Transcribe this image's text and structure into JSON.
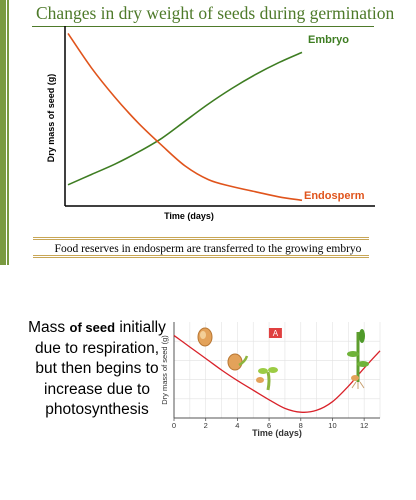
{
  "slide": {
    "title": "Changes in dry weight of seeds during germination",
    "caption": "Food reserves in endosperm are transferred to the growing embryo",
    "mass_note": {
      "first": "Mass",
      "bold": "of seed",
      "rest": "initially due to respiration, but then begins to increase due to photosynthesis"
    }
  },
  "colors": {
    "title": "#4e7a2a",
    "rule": "#c8a656",
    "sidebar": "#7a9a40",
    "embryo": "#3e7d22",
    "endosperm": "#e0541c",
    "curve2": "#d9222a",
    "marker": "#e04040",
    "axis": "#000000"
  },
  "chart_data": [
    {
      "type": "line",
      "xlabel": "Time (days)",
      "ylabel": "Dry mass of seed (g)",
      "x_ticks_labeled": false,
      "y_ticks_labeled": false,
      "xlim": [
        0,
        10
      ],
      "ylim": [
        0,
        10
      ],
      "series": [
        {
          "name": "Embryo",
          "color": "#3e7d22",
          "x": [
            0,
            1,
            2,
            3,
            4,
            5,
            6,
            7,
            8,
            9,
            10
          ],
          "y": [
            1.0,
            1.6,
            2.2,
            2.9,
            3.7,
            4.7,
            5.7,
            6.6,
            7.4,
            8.1,
            8.7
          ]
        },
        {
          "name": "Endosperm",
          "color": "#e0541c",
          "x": [
            0,
            1,
            2,
            3,
            4,
            5,
            6,
            7,
            8,
            9,
            10
          ],
          "y": [
            9.8,
            7.8,
            6.1,
            4.6,
            3.3,
            2.1,
            1.3,
            0.9,
            0.6,
            0.3,
            0.1
          ]
        }
      ]
    },
    {
      "type": "line",
      "xlabel": "Time (days)",
      "ylabel": "Dry mass of seed (g)",
      "x_ticks": [
        0,
        2,
        4,
        6,
        8,
        10,
        12
      ],
      "xlim": [
        0,
        13
      ],
      "ylim": [
        0,
        10
      ],
      "marker_label": "A",
      "marker_x": 6.4,
      "series": [
        {
          "color": "#d9222a",
          "x": [
            0,
            1,
            2,
            3,
            4,
            5,
            6,
            7,
            8,
            9,
            10,
            11,
            12,
            13
          ],
          "y": [
            8.6,
            7.4,
            6.2,
            5.0,
            3.9,
            2.9,
            1.9,
            1.0,
            0.6,
            0.8,
            1.7,
            3.3,
            5.2,
            7.0
          ]
        }
      ],
      "stage_icons": [
        "seed-icon",
        "germinating-seed-icon",
        "seedling-icon",
        "young-plant-icon"
      ]
    }
  ]
}
